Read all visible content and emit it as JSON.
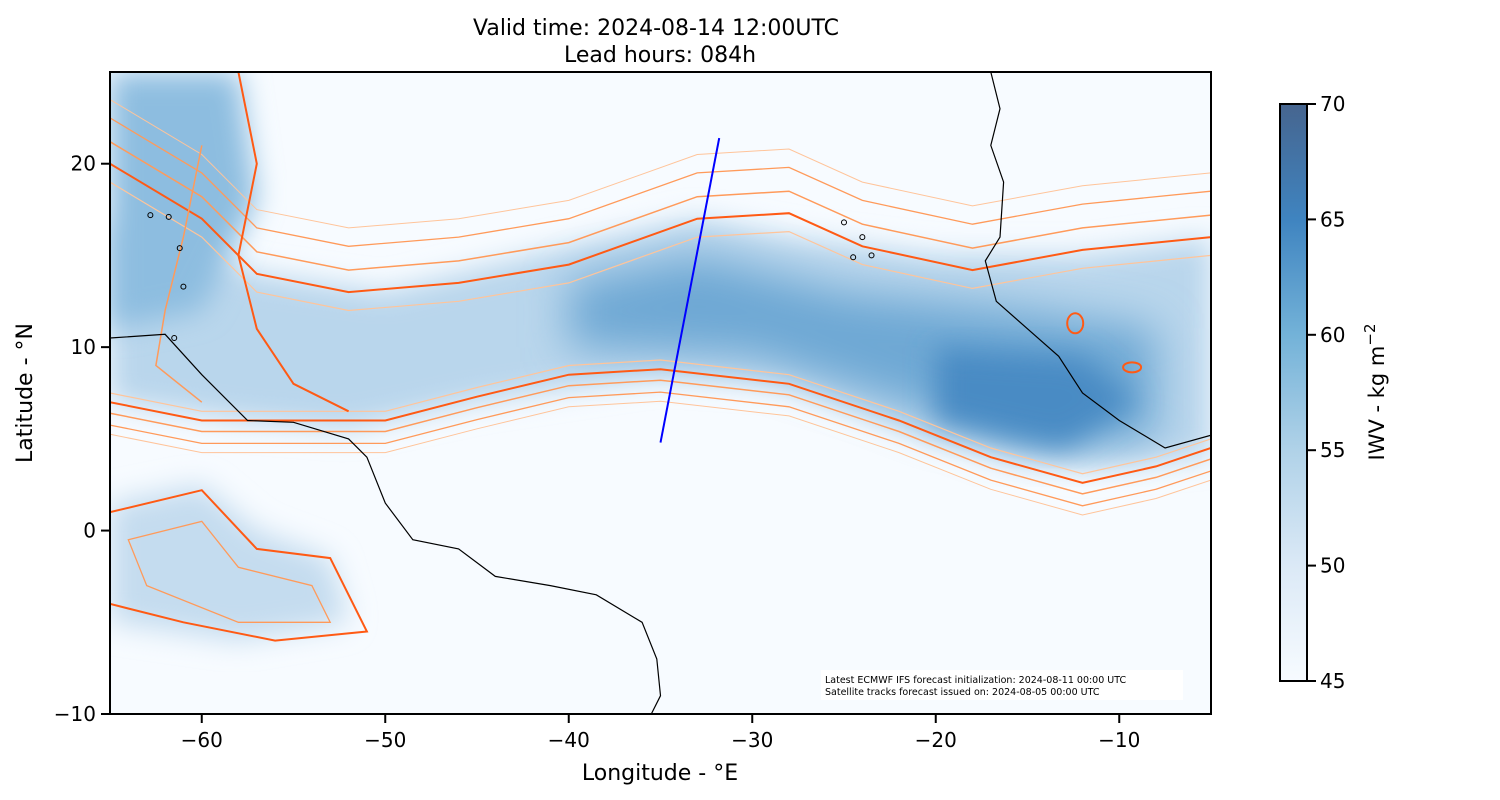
{
  "chart_data": {
    "type": "heatmap",
    "title_line1": "Valid time: 2024-08-14 12:00UTC",
    "title_line2": "Lead hours: 084h",
    "xlabel": "Longitude - °E",
    "ylabel": "Latitude - °N",
    "xlim": [
      -65,
      -5
    ],
    "ylim": [
      -10,
      25
    ],
    "xticks": [
      -60,
      -50,
      -40,
      -30,
      -20,
      -10
    ],
    "xtick_labels": [
      "−60",
      "−50",
      "−40",
      "−30",
      "−20",
      "−10"
    ],
    "yticks": [
      -10,
      0,
      10,
      20
    ],
    "ytick_labels": [
      "−10",
      "0",
      "10",
      "20"
    ],
    "colorbar": {
      "label": "IWV - kg m",
      "label_exponent": "−2",
      "range": [
        45,
        70
      ],
      "ticks": [
        45,
        50,
        55,
        60,
        65,
        70
      ],
      "tick_labels": [
        "45",
        "50",
        "55",
        "60",
        "65",
        "70"
      ],
      "color_low": "#f7fbff",
      "color_high": "#46658f"
    },
    "satellite_track": {
      "start": [
        -35.0,
        4.8
      ],
      "end": [
        -31.8,
        21.4
      ],
      "color": "#0000ff"
    },
    "contour_colors": [
      "#ff5a14",
      "#ff9a5a",
      "#ffc49a"
    ],
    "annotation": [
      "Latest ECMWF IFS forecast initialization: 2024-08-11 00:00 UTC",
      "Satellite tracks forecast issued on: 2024-08-05 00:00 UTC"
    ]
  }
}
